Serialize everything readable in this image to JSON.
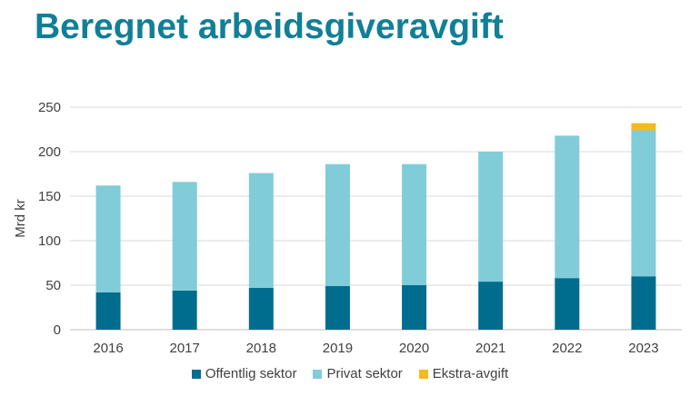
{
  "header": {
    "title": "Beregnet arbeidsgiveravgift"
  },
  "chart_data": {
    "type": "bar",
    "stacked": true,
    "title": "Beregnet arbeidsgiveravgift",
    "xlabel": "",
    "ylabel": "Mrd kr",
    "ylim": [
      0,
      250
    ],
    "yticks": [
      0,
      50,
      100,
      150,
      200,
      250
    ],
    "grid": true,
    "legend_position": "bottom",
    "categories": [
      "2016",
      "2017",
      "2018",
      "2019",
      "2020",
      "2021",
      "2022",
      "2023"
    ],
    "series": [
      {
        "name": "Offentlig sektor",
        "color": "#006d8f",
        "values": [
          42,
          44,
          47,
          49,
          50,
          54,
          58,
          60
        ]
      },
      {
        "name": "Privat sektor",
        "color": "#81ccd9",
        "values": [
          120,
          122,
          129,
          137,
          136,
          146,
          160,
          164
        ]
      },
      {
        "name": "Ekstra-avgift",
        "color": "#f4bb1a",
        "values": [
          0,
          0,
          0,
          0,
          0,
          0,
          0,
          8
        ]
      }
    ]
  }
}
